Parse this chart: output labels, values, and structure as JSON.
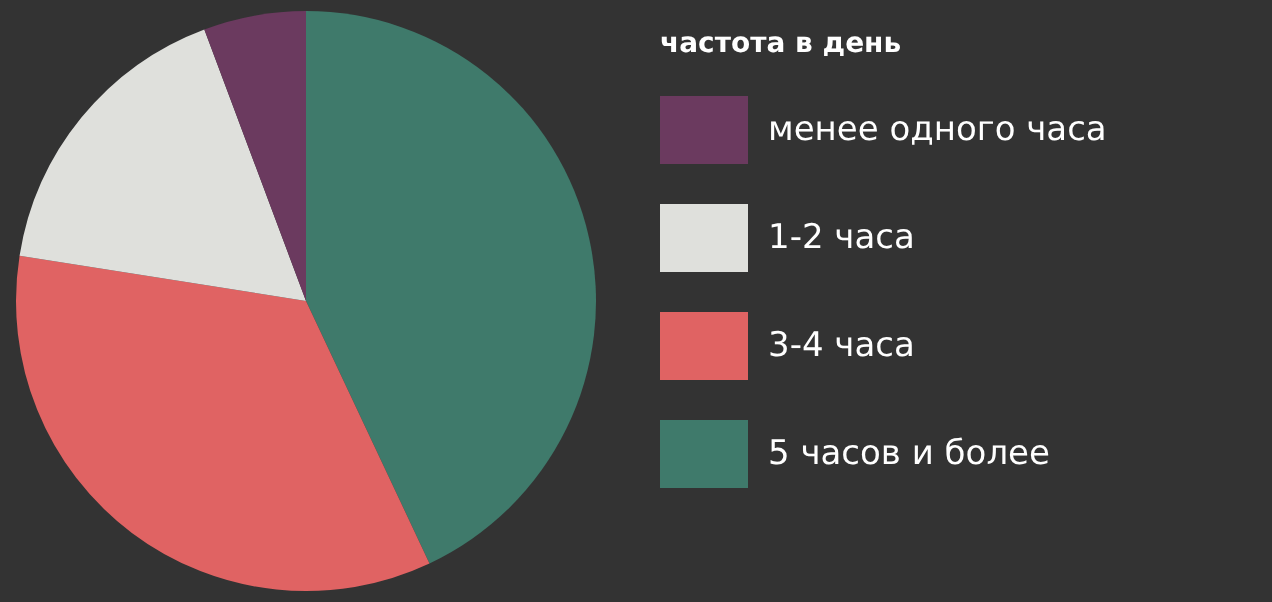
{
  "chart_data": {
    "type": "pie",
    "legend_title": "частота в день",
    "legend": "right",
    "categories": [
      "менее одного часа",
      "1-2 часа",
      "3-4 часа",
      "5 часов и более"
    ],
    "values": [
      5.7,
      16.8,
      34.5,
      43
    ],
    "colors": [
      "#6b3a5f",
      "#dfe0dc",
      "#e06363",
      "#3f7a6b"
    ]
  }
}
